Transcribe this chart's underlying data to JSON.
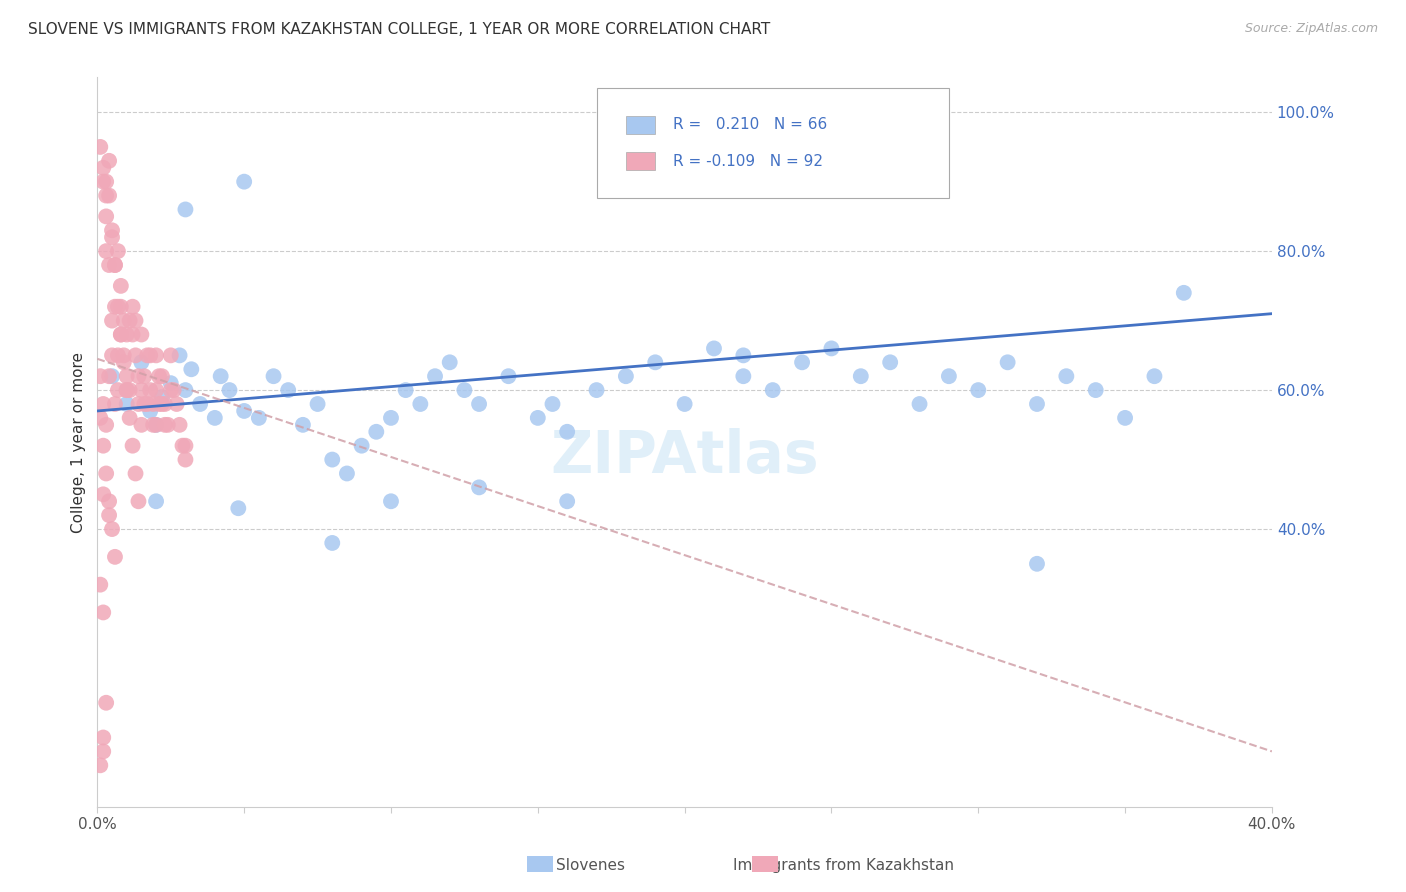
{
  "title": "SLOVENE VS IMMIGRANTS FROM KAZAKHSTAN COLLEGE, 1 YEAR OR MORE CORRELATION CHART",
  "source": "Source: ZipAtlas.com",
  "ylabel": "College, 1 year or more",
  "legend_label1": "Slovenes",
  "legend_label2": "Immigrants from Kazakhstan",
  "R1": 0.21,
  "N1": 66,
  "R2": -0.109,
  "N2": 92,
  "xlim": [
    0.0,
    0.4
  ],
  "ylim": [
    0.0,
    1.05
  ],
  "color_slovene": "#a8c8f0",
  "color_kazakh": "#f0a8b8",
  "color_line_slovene": "#4472c4",
  "color_line_kazakh": "#d0a0a8",
  "watermark": "ZIPAtlas",
  "blue_line_x": [
    0.0,
    0.4
  ],
  "blue_line_y": [
    0.57,
    0.71
  ],
  "pink_line_x": [
    0.0,
    0.4
  ],
  "pink_line_y": [
    0.645,
    0.08
  ],
  "slovene_x": [
    0.005,
    0.01,
    0.015,
    0.018,
    0.02,
    0.022,
    0.025,
    0.028,
    0.03,
    0.032,
    0.035,
    0.04,
    0.042,
    0.045,
    0.05,
    0.055,
    0.06,
    0.065,
    0.07,
    0.075,
    0.08,
    0.085,
    0.09,
    0.095,
    0.1,
    0.105,
    0.11,
    0.115,
    0.12,
    0.125,
    0.13,
    0.14,
    0.15,
    0.155,
    0.16,
    0.17,
    0.18,
    0.19,
    0.2,
    0.21,
    0.22,
    0.23,
    0.24,
    0.25,
    0.26,
    0.27,
    0.28,
    0.29,
    0.3,
    0.31,
    0.32,
    0.33,
    0.34,
    0.35,
    0.36,
    0.02,
    0.08,
    0.1,
    0.16,
    0.22,
    0.37,
    0.03,
    0.05,
    0.13,
    0.048,
    0.32
  ],
  "slovene_y": [
    0.62,
    0.58,
    0.64,
    0.57,
    0.55,
    0.59,
    0.61,
    0.65,
    0.6,
    0.63,
    0.58,
    0.56,
    0.62,
    0.6,
    0.57,
    0.56,
    0.62,
    0.6,
    0.55,
    0.58,
    0.5,
    0.48,
    0.52,
    0.54,
    0.56,
    0.6,
    0.58,
    0.62,
    0.64,
    0.6,
    0.58,
    0.62,
    0.56,
    0.58,
    0.54,
    0.6,
    0.62,
    0.64,
    0.58,
    0.66,
    0.62,
    0.6,
    0.64,
    0.66,
    0.62,
    0.64,
    0.58,
    0.62,
    0.6,
    0.64,
    0.58,
    0.62,
    0.6,
    0.56,
    0.62,
    0.44,
    0.38,
    0.44,
    0.44,
    0.65,
    0.74,
    0.86,
    0.9,
    0.46,
    0.43,
    0.35
  ],
  "kazakh_x": [
    0.001,
    0.002,
    0.002,
    0.003,
    0.003,
    0.003,
    0.004,
    0.004,
    0.005,
    0.005,
    0.005,
    0.006,
    0.006,
    0.007,
    0.007,
    0.007,
    0.008,
    0.008,
    0.008,
    0.009,
    0.009,
    0.01,
    0.01,
    0.01,
    0.011,
    0.011,
    0.012,
    0.012,
    0.013,
    0.013,
    0.014,
    0.014,
    0.015,
    0.015,
    0.015,
    0.016,
    0.016,
    0.017,
    0.017,
    0.018,
    0.018,
    0.019,
    0.019,
    0.02,
    0.02,
    0.02,
    0.021,
    0.021,
    0.022,
    0.022,
    0.023,
    0.023,
    0.024,
    0.025,
    0.025,
    0.026,
    0.027,
    0.028,
    0.029,
    0.03,
    0.03,
    0.001,
    0.002,
    0.003,
    0.004,
    0.005,
    0.006,
    0.007,
    0.008,
    0.009,
    0.01,
    0.011,
    0.012,
    0.013,
    0.014,
    0.001,
    0.002,
    0.003,
    0.004,
    0.005,
    0.006,
    0.001,
    0.002,
    0.003,
    0.004,
    0.002,
    0.003,
    0.001,
    0.002,
    0.004,
    0.006,
    0.002
  ],
  "kazakh_y": [
    0.62,
    0.58,
    0.9,
    0.88,
    0.85,
    0.8,
    0.78,
    0.93,
    0.83,
    0.7,
    0.65,
    0.78,
    0.72,
    0.8,
    0.65,
    0.6,
    0.75,
    0.68,
    0.72,
    0.7,
    0.65,
    0.68,
    0.62,
    0.6,
    0.7,
    0.6,
    0.72,
    0.68,
    0.7,
    0.65,
    0.62,
    0.58,
    0.68,
    0.6,
    0.55,
    0.62,
    0.58,
    0.65,
    0.58,
    0.65,
    0.6,
    0.58,
    0.55,
    0.65,
    0.6,
    0.55,
    0.62,
    0.58,
    0.62,
    0.58,
    0.58,
    0.55,
    0.55,
    0.65,
    0.6,
    0.6,
    0.58,
    0.55,
    0.52,
    0.52,
    0.5,
    0.95,
    0.92,
    0.9,
    0.88,
    0.82,
    0.78,
    0.72,
    0.68,
    0.64,
    0.6,
    0.56,
    0.52,
    0.48,
    0.44,
    0.56,
    0.52,
    0.48,
    0.44,
    0.4,
    0.36,
    0.32,
    0.28,
    0.55,
    0.42,
    0.1,
    0.15,
    0.06,
    0.08,
    0.62,
    0.58,
    0.45
  ]
}
